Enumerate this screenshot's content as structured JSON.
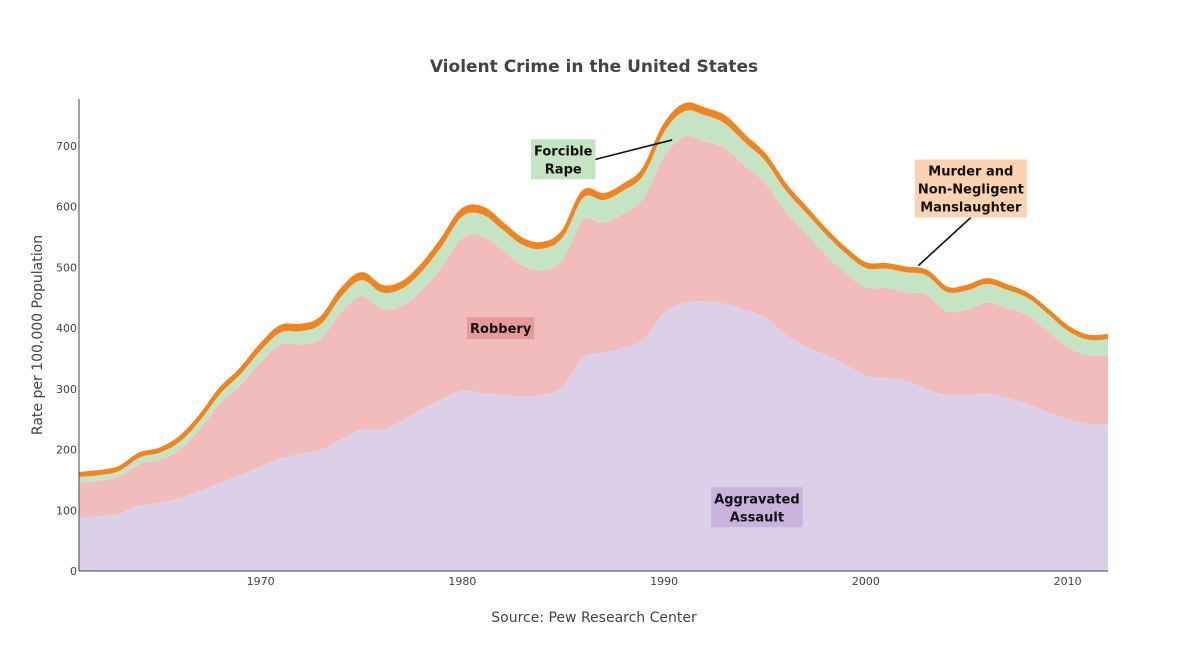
{
  "chart_data": {
    "type": "area",
    "stacked": true,
    "title": "Violent Crime in the United States",
    "ylabel": "Rate per 100,000 Population",
    "xlabel": "Source: Pew Research Center",
    "xlim": [
      1961,
      2012
    ],
    "ylim": [
      0,
      780
    ],
    "x_ticks": [
      1970,
      1980,
      1990,
      2000,
      2010
    ],
    "y_ticks": [
      0,
      100,
      200,
      300,
      400,
      500,
      600,
      700
    ],
    "grid": false,
    "x": [
      1961,
      1962,
      1963,
      1964,
      1965,
      1966,
      1967,
      1968,
      1969,
      1970,
      1971,
      1972,
      1973,
      1974,
      1975,
      1976,
      1977,
      1978,
      1979,
      1980,
      1981,
      1982,
      1983,
      1984,
      1985,
      1986,
      1987,
      1988,
      1989,
      1990,
      1991,
      1992,
      1993,
      1994,
      1995,
      1996,
      1997,
      1998,
      1999,
      2000,
      2001,
      2002,
      2003,
      2004,
      2005,
      2006,
      2007,
      2008,
      2009,
      2010,
      2011,
      2012
    ],
    "series": [
      {
        "name": "Aggravated Assault",
        "color": "#dcd0e8",
        "values": [
          88,
          90,
          95,
          108,
          112,
          120,
          132,
          145,
          158,
          172,
          185,
          193,
          200,
          217,
          233,
          232,
          248,
          267,
          283,
          297,
          293,
          290,
          287,
          290,
          305,
          352,
          360,
          368,
          382,
          425,
          442,
          444,
          440,
          430,
          418,
          390,
          370,
          356,
          340,
          322,
          318,
          313,
          300,
          290,
          290,
          292,
          285,
          275,
          262,
          250,
          242,
          242
        ]
      },
      {
        "name": "Robbery",
        "color": "#f2bcbc",
        "values": [
          58,
          59,
          61,
          68,
          71,
          80,
          102,
          131,
          148,
          172,
          188,
          180,
          183,
          209,
          220,
          200,
          188,
          196,
          218,
          251,
          258,
          238,
          216,
          205,
          209,
          225,
          213,
          221,
          233,
          257,
          273,
          264,
          256,
          237,
          221,
          202,
          186,
          165,
          150,
          145,
          148,
          146,
          155,
          138,
          140,
          150,
          148,
          146,
          133,
          119,
          113,
          113
        ]
      },
      {
        "name": "Forcible Rape",
        "color": "#c5e4c3",
        "values": [
          9,
          9,
          9,
          11,
          12,
          13,
          14,
          16,
          18,
          19,
          20,
          22,
          24,
          26,
          26,
          27,
          29,
          31,
          35,
          36,
          36,
          34,
          34,
          36,
          37,
          38,
          38,
          38,
          38,
          41,
          42,
          43,
          41,
          39,
          37,
          36,
          35,
          34,
          33,
          32,
          32,
          33,
          32,
          32,
          32,
          31,
          30,
          29,
          29,
          27,
          26,
          27
        ]
      },
      {
        "name": "Murder and Non-Negligent Manslaughter",
        "color": "#f08420",
        "values": [
          5,
          5,
          5,
          5,
          5,
          6,
          6,
          7,
          7,
          8,
          9,
          9,
          9,
          10,
          10,
          9,
          9,
          9,
          10,
          10,
          10,
          9,
          8,
          8,
          8,
          9,
          8,
          8,
          9,
          9,
          10,
          9,
          10,
          9,
          8,
          7,
          7,
          6,
          6,
          6,
          6,
          6,
          6,
          5,
          6,
          6,
          6,
          5,
          5,
          5,
          5,
          5
        ]
      }
    ],
    "annotations": [
      {
        "text_lines": [
          "Forcible",
          "Rape"
        ],
        "bg": "#c5e4c3",
        "x": 1985,
        "y": 678,
        "arrow_to": [
          1990.4,
          710
        ]
      },
      {
        "text_lines": [
          "Murder and",
          "Non-Negligent",
          "Manslaughter"
        ],
        "bg": "#fcd3b0",
        "x": 2005.2,
        "y": 630,
        "arrow_to": [
          2002.6,
          503
        ]
      },
      {
        "text_lines": [
          "Robbery"
        ],
        "bg": "#e89a9a",
        "x": 1981.9,
        "y": 400
      },
      {
        "text_lines": [
          "Aggravated",
          "Assault"
        ],
        "bg": "#c9b3dc",
        "x": 1994.6,
        "y": 105
      }
    ]
  }
}
